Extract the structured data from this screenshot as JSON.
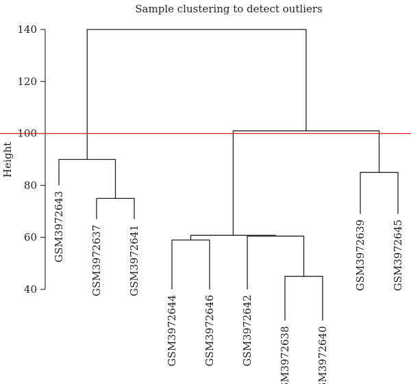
{
  "chart_data": {
    "type": "dendrogram",
    "title": "Sample clustering to detect outliers",
    "xlabel": "",
    "ylabel": "Height",
    "ylim": [
      40,
      140
    ],
    "yticks": [
      40,
      60,
      80,
      100,
      120,
      140
    ],
    "cut_height": 100,
    "colors": {
      "cut_line": "#d62728",
      "branches": "#222222"
    },
    "leaves": [
      {
        "label": "GSM3972643",
        "height": 80
      },
      {
        "label": "GSM3972637",
        "height": 67
      },
      {
        "label": "GSM3972641",
        "height": 67
      },
      {
        "label": "GSM3972644",
        "height": 40
      },
      {
        "label": "GSM3972646",
        "height": 40
      },
      {
        "label": "GSM3972642",
        "height": 40
      },
      {
        "label": "GSM3972638",
        "height": 28
      },
      {
        "label": "GSM3972640",
        "height": 28
      },
      {
        "label": "GSM3972639",
        "height": 69
      },
      {
        "label": "GSM3972645",
        "height": 69
      }
    ],
    "merges": [
      {
        "left": "L1",
        "right": "L2",
        "height": 75
      },
      {
        "left": "L0",
        "right": "M0",
        "height": 90
      },
      {
        "left": "L3",
        "right": "L4",
        "height": 59
      },
      {
        "left": "L6",
        "right": "L7",
        "height": 45
      },
      {
        "left": "L5",
        "right": "M3",
        "height": 60.5
      },
      {
        "left": "M2",
        "right": "M4",
        "height": 60.8
      },
      {
        "left": "L8",
        "right": "L9",
        "height": 85
      },
      {
        "left": "M5",
        "right": "M6",
        "height": 101
      },
      {
        "left": "M1",
        "right": "M7",
        "height": 140
      }
    ]
  }
}
